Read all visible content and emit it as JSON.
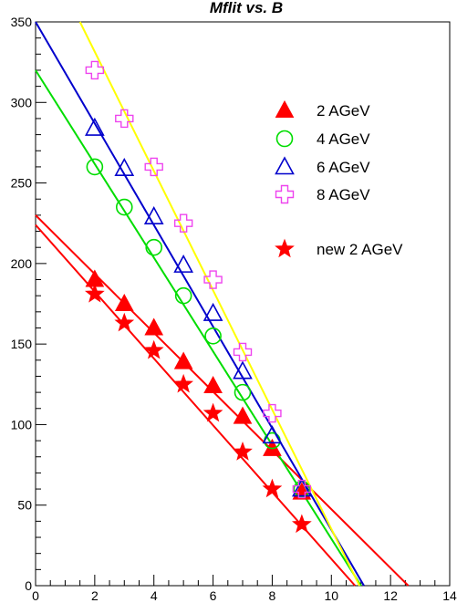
{
  "chart_data": {
    "type": "scatter",
    "title": "Mflit vs. B",
    "xlabel": "",
    "ylabel": "",
    "xlim": [
      0,
      14
    ],
    "ylim": [
      0,
      350
    ],
    "xticks": [
      0,
      2,
      4,
      6,
      8,
      10,
      12,
      14
    ],
    "yticks": [
      0,
      50,
      100,
      150,
      200,
      250,
      300,
      350
    ],
    "grid": false,
    "legend_position": "top-right",
    "series": [
      {
        "name": "2 AGeV",
        "marker": "filled-triangle",
        "color": "#ff0000",
        "points": [
          [
            2,
            190
          ],
          [
            3,
            175
          ],
          [
            4,
            160
          ],
          [
            5,
            139
          ],
          [
            6,
            124
          ],
          [
            7,
            105
          ],
          [
            8,
            85
          ],
          [
            9,
            58
          ]
        ],
        "fit_line": [
          [
            0,
            230
          ],
          [
            12.6,
            0
          ]
        ]
      },
      {
        "name": "4 AGeV",
        "marker": "open-circle",
        "color": "#00dd00",
        "points": [
          [
            2,
            260
          ],
          [
            3,
            235
          ],
          [
            4,
            210
          ],
          [
            5,
            180
          ],
          [
            6,
            155
          ],
          [
            7,
            120
          ],
          [
            8,
            90
          ],
          [
            9,
            60
          ]
        ],
        "fit_line": [
          [
            0,
            320
          ],
          [
            11,
            0
          ]
        ]
      },
      {
        "name": "6 AGeV",
        "marker": "open-triangle",
        "color": "#0000cc",
        "points": [
          [
            2,
            284
          ],
          [
            3,
            259
          ],
          [
            4,
            229
          ],
          [
            5,
            199
          ],
          [
            6,
            169
          ],
          [
            7,
            133
          ],
          [
            8,
            93
          ],
          [
            9,
            60
          ]
        ],
        "fit_line": [
          [
            0,
            350
          ],
          [
            11.1,
            0
          ]
        ]
      },
      {
        "name": "8 AGeV",
        "marker": "open-cross",
        "color": "#ee44ee",
        "points": [
          [
            2,
            320
          ],
          [
            3,
            290
          ],
          [
            4,
            260
          ],
          [
            5,
            225
          ],
          [
            6,
            190
          ],
          [
            7,
            145
          ],
          [
            8,
            107
          ],
          [
            9,
            60
          ]
        ],
        "fit_line": [
          [
            1.5,
            350
          ],
          [
            10.95,
            0
          ]
        ],
        "fit_color": "#ffff00"
      },
      {
        "name": "new 2 AGeV",
        "marker": "filled-star",
        "color": "#ff0000",
        "points": [
          [
            2,
            181
          ],
          [
            3,
            163
          ],
          [
            4,
            146
          ],
          [
            5,
            125
          ],
          [
            6,
            107
          ],
          [
            7,
            83
          ],
          [
            8,
            60
          ],
          [
            9,
            38
          ]
        ],
        "fit_line": [
          [
            0,
            224
          ],
          [
            10.8,
            0
          ]
        ]
      }
    ]
  }
}
